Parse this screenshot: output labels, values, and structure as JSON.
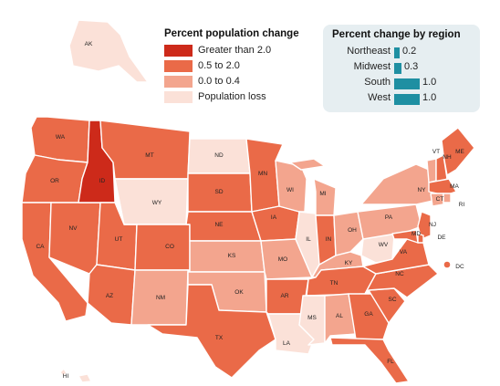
{
  "legend": {
    "title": "Percent population change",
    "items": [
      {
        "label": "Greater than 2.0",
        "color": "#cd2a1a"
      },
      {
        "label": "0.5 to 2.0",
        "color": "#ea6a48"
      },
      {
        "label": "0.0 to 0.4",
        "color": "#f3a58e"
      },
      {
        "label": "Population loss",
        "color": "#fbe1d8"
      }
    ]
  },
  "regions": {
    "title": "Percent change by region",
    "bar_color": "#1e8fa2",
    "items": [
      {
        "name": "Northeast",
        "value": "0.2",
        "num": 0.2
      },
      {
        "name": "Midwest",
        "value": "0.3",
        "num": 0.3
      },
      {
        "name": "South",
        "value": "1.0",
        "num": 1.0
      },
      {
        "name": "West",
        "value": "1.0",
        "num": 1.0
      }
    ]
  },
  "states": [
    {
      "abbr": "AK",
      "cat": 3
    },
    {
      "abbr": "HI",
      "cat": 3
    },
    {
      "abbr": "WA",
      "cat": 1
    },
    {
      "abbr": "OR",
      "cat": 1
    },
    {
      "abbr": "CA",
      "cat": 1
    },
    {
      "abbr": "NV",
      "cat": 1
    },
    {
      "abbr": "ID",
      "cat": 0
    },
    {
      "abbr": "MT",
      "cat": 1
    },
    {
      "abbr": "WY",
      "cat": 3
    },
    {
      "abbr": "UT",
      "cat": 1
    },
    {
      "abbr": "AZ",
      "cat": 1
    },
    {
      "abbr": "CO",
      "cat": 1
    },
    {
      "abbr": "NM",
      "cat": 2
    },
    {
      "abbr": "ND",
      "cat": 3
    },
    {
      "abbr": "SD",
      "cat": 1
    },
    {
      "abbr": "NE",
      "cat": 1
    },
    {
      "abbr": "KS",
      "cat": 2
    },
    {
      "abbr": "OK",
      "cat": 2
    },
    {
      "abbr": "TX",
      "cat": 1
    },
    {
      "abbr": "MN",
      "cat": 1
    },
    {
      "abbr": "IA",
      "cat": 1
    },
    {
      "abbr": "MO",
      "cat": 2
    },
    {
      "abbr": "AR",
      "cat": 1
    },
    {
      "abbr": "LA",
      "cat": 3
    },
    {
      "abbr": "WI",
      "cat": 2
    },
    {
      "abbr": "IL",
      "cat": 3
    },
    {
      "abbr": "MI",
      "cat": 2
    },
    {
      "abbr": "IN",
      "cat": 1
    },
    {
      "abbr": "OH",
      "cat": 2
    },
    {
      "abbr": "KY",
      "cat": 2
    },
    {
      "abbr": "TN",
      "cat": 1
    },
    {
      "abbr": "MS",
      "cat": 3
    },
    {
      "abbr": "AL",
      "cat": 2
    },
    {
      "abbr": "GA",
      "cat": 1
    },
    {
      "abbr": "FL",
      "cat": 1
    },
    {
      "abbr": "SC",
      "cat": 1
    },
    {
      "abbr": "NC",
      "cat": 1
    },
    {
      "abbr": "VA",
      "cat": 1
    },
    {
      "abbr": "WV",
      "cat": 3
    },
    {
      "abbr": "PA",
      "cat": 2
    },
    {
      "abbr": "NY",
      "cat": 2
    },
    {
      "abbr": "VT",
      "cat": 2
    },
    {
      "abbr": "NH",
      "cat": 1
    },
    {
      "abbr": "ME",
      "cat": 1
    },
    {
      "abbr": "MA",
      "cat": 1
    },
    {
      "abbr": "RI",
      "cat": 2
    },
    {
      "abbr": "CT",
      "cat": 2
    },
    {
      "abbr": "NJ",
      "cat": 1
    },
    {
      "abbr": "DE",
      "cat": 1
    },
    {
      "abbr": "MD",
      "cat": 1
    },
    {
      "abbr": "DC",
      "cat": 1
    }
  ]
}
